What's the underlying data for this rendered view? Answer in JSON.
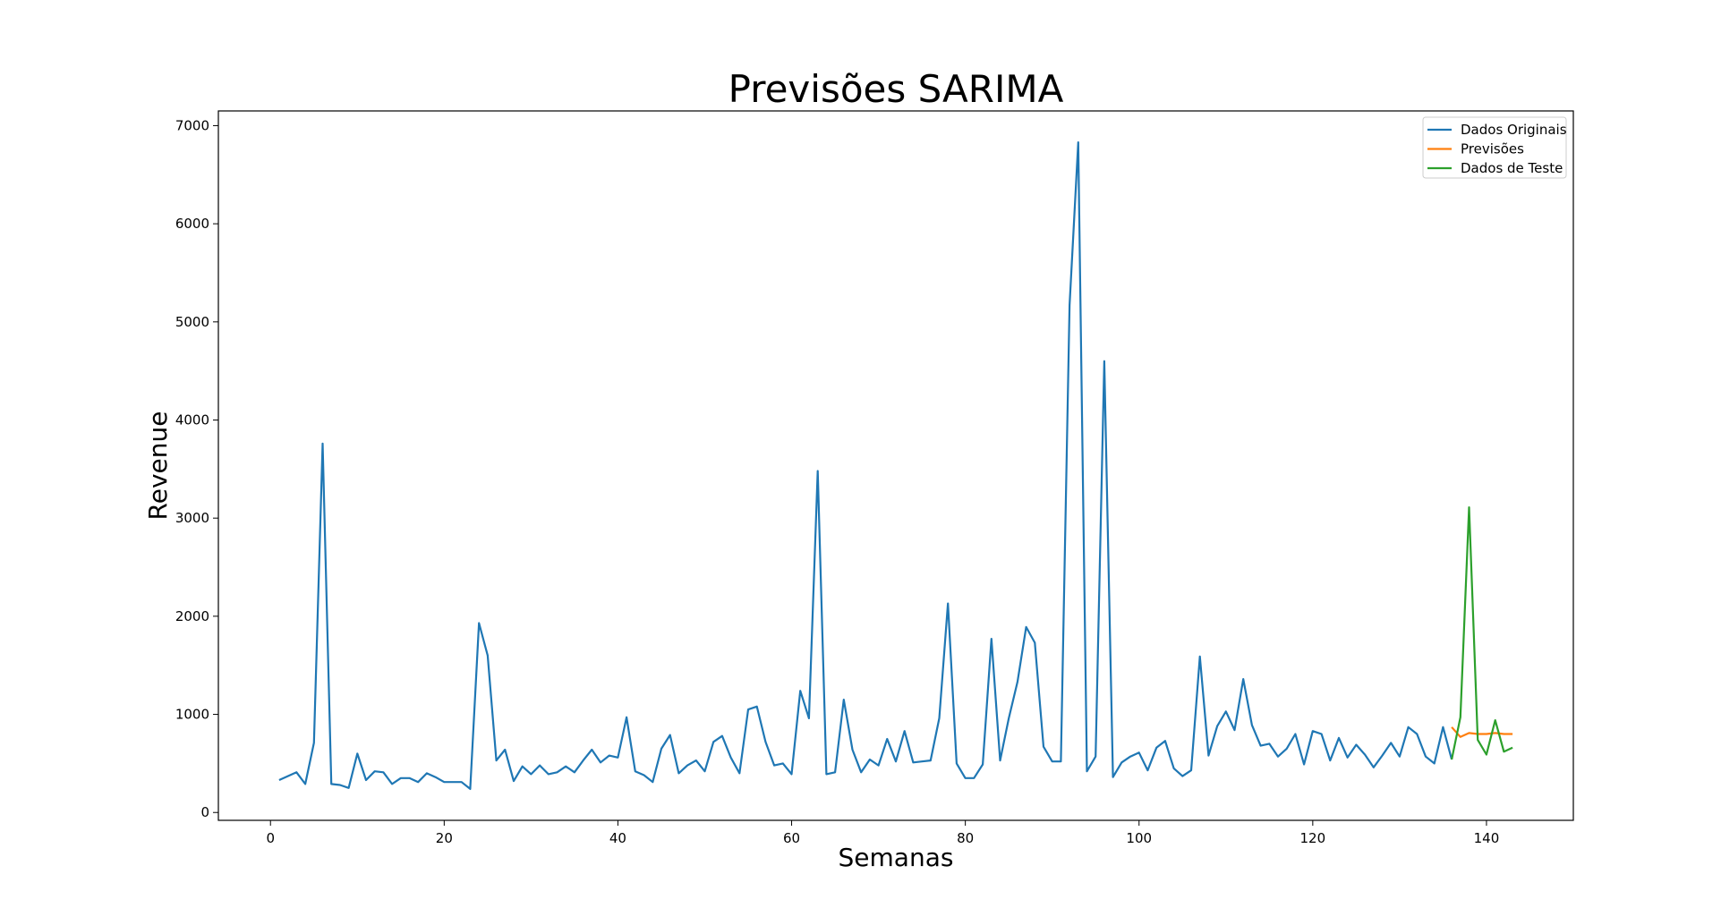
{
  "chart_data": {
    "type": "line",
    "title": "Previsões SARIMA",
    "xlabel": "Semanas",
    "ylabel": "Revenue",
    "xlim": [
      -6,
      150
    ],
    "ylim": [
      -80,
      7150
    ],
    "xticks": [
      0,
      20,
      40,
      60,
      80,
      100,
      120,
      140
    ],
    "yticks": [
      0,
      1000,
      2000,
      3000,
      4000,
      5000,
      6000,
      7000
    ],
    "grid": false,
    "legend_position": "top-right",
    "series": [
      {
        "name": "Dados Originais",
        "color": "#1f77b4",
        "x": [
          1,
          2,
          3,
          4,
          5,
          6,
          7,
          8,
          9,
          10,
          11,
          12,
          13,
          14,
          15,
          16,
          17,
          18,
          19,
          20,
          21,
          22,
          23,
          24,
          25,
          26,
          27,
          28,
          29,
          30,
          31,
          32,
          33,
          34,
          35,
          36,
          37,
          38,
          39,
          40,
          41,
          42,
          43,
          44,
          45,
          46,
          47,
          48,
          49,
          50,
          51,
          52,
          53,
          54,
          55,
          56,
          57,
          58,
          59,
          60,
          61,
          62,
          63,
          64,
          65,
          66,
          67,
          68,
          69,
          70,
          71,
          72,
          73,
          74,
          75,
          76,
          77,
          78,
          79,
          80,
          81,
          82,
          83,
          84,
          85,
          86,
          87,
          88,
          89,
          90,
          91,
          92,
          93,
          94,
          95,
          96,
          97,
          98,
          99,
          100,
          101,
          102,
          103,
          104,
          105,
          106,
          107,
          108,
          109,
          110,
          111,
          112,
          113,
          114,
          115,
          116,
          117,
          118,
          119,
          120,
          121,
          122,
          123,
          124,
          125,
          126,
          127,
          128,
          129,
          130,
          131,
          132,
          133,
          134,
          135,
          136
        ],
        "y": [
          330,
          370,
          410,
          290,
          710,
          3760,
          290,
          280,
          250,
          600,
          330,
          420,
          410,
          290,
          350,
          350,
          310,
          400,
          360,
          310,
          310,
          310,
          240,
          1930,
          1600,
          530,
          640,
          320,
          470,
          390,
          480,
          390,
          410,
          470,
          410,
          530,
          640,
          510,
          580,
          560,
          970,
          420,
          380,
          310,
          650,
          790,
          400,
          480,
          530,
          420,
          720,
          780,
          560,
          400,
          1050,
          1080,
          720,
          480,
          500,
          390,
          1240,
          960,
          3480,
          390,
          410,
          1150,
          640,
          410,
          540,
          480,
          750,
          520,
          830,
          510,
          520,
          530,
          960,
          2130,
          500,
          350,
          350,
          490,
          1770,
          530,
          960,
          1330,
          1890,
          1730,
          670,
          520,
          520,
          5170,
          6830,
          420,
          570,
          4600,
          360,
          510,
          570,
          610,
          430,
          660,
          730,
          450,
          370,
          430,
          1590,
          580,
          880,
          1030,
          840,
          1360,
          890,
          680,
          700,
          570,
          650,
          800,
          490,
          830,
          800,
          530,
          760,
          560,
          690,
          590,
          460,
          580,
          710,
          570,
          870,
          800,
          570,
          500,
          870,
          540
        ]
      },
      {
        "name": "Previsões",
        "color": "#ff7f0e",
        "x": [
          136,
          137,
          138,
          139,
          140,
          141,
          142,
          143
        ],
        "y": [
          870,
          770,
          810,
          800,
          800,
          810,
          800,
          800
        ]
      },
      {
        "name": "Dados de Teste",
        "color": "#2ca02c",
        "x": [
          136,
          137,
          138,
          139,
          140,
          141,
          142,
          143
        ],
        "y": [
          540,
          970,
          3110,
          740,
          590,
          940,
          620,
          660
        ]
      }
    ]
  }
}
